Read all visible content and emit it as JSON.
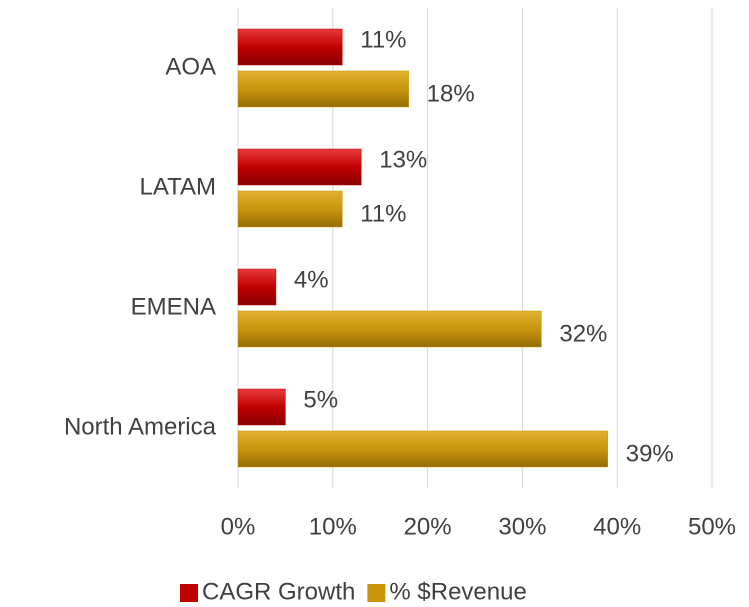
{
  "chart_data": {
    "type": "hbar",
    "categories": [
      "AOA",
      "LATAM",
      "EMENA",
      "North America"
    ],
    "series": [
      {
        "name": "CAGR Growth",
        "color": "#c00000",
        "values": [
          11,
          13,
          4,
          5
        ],
        "value_labels": [
          "11%",
          "13%",
          "4%",
          "5%"
        ]
      },
      {
        "name": "% $Revenue",
        "color": "#c9950c",
        "values": [
          18,
          11,
          32,
          39
        ],
        "value_labels": [
          "18%",
          "11%",
          "32%",
          "39%"
        ]
      }
    ],
    "xlim": [
      0,
      50
    ],
    "xticks": [
      {
        "value": 0,
        "label": "0%"
      },
      {
        "value": 10,
        "label": "10%"
      },
      {
        "value": 20,
        "label": "20%"
      },
      {
        "value": 30,
        "label": "30%"
      },
      {
        "value": 40,
        "label": "40%"
      },
      {
        "value": 50,
        "label": "50%"
      }
    ],
    "grid": true,
    "legend": "bottom"
  }
}
